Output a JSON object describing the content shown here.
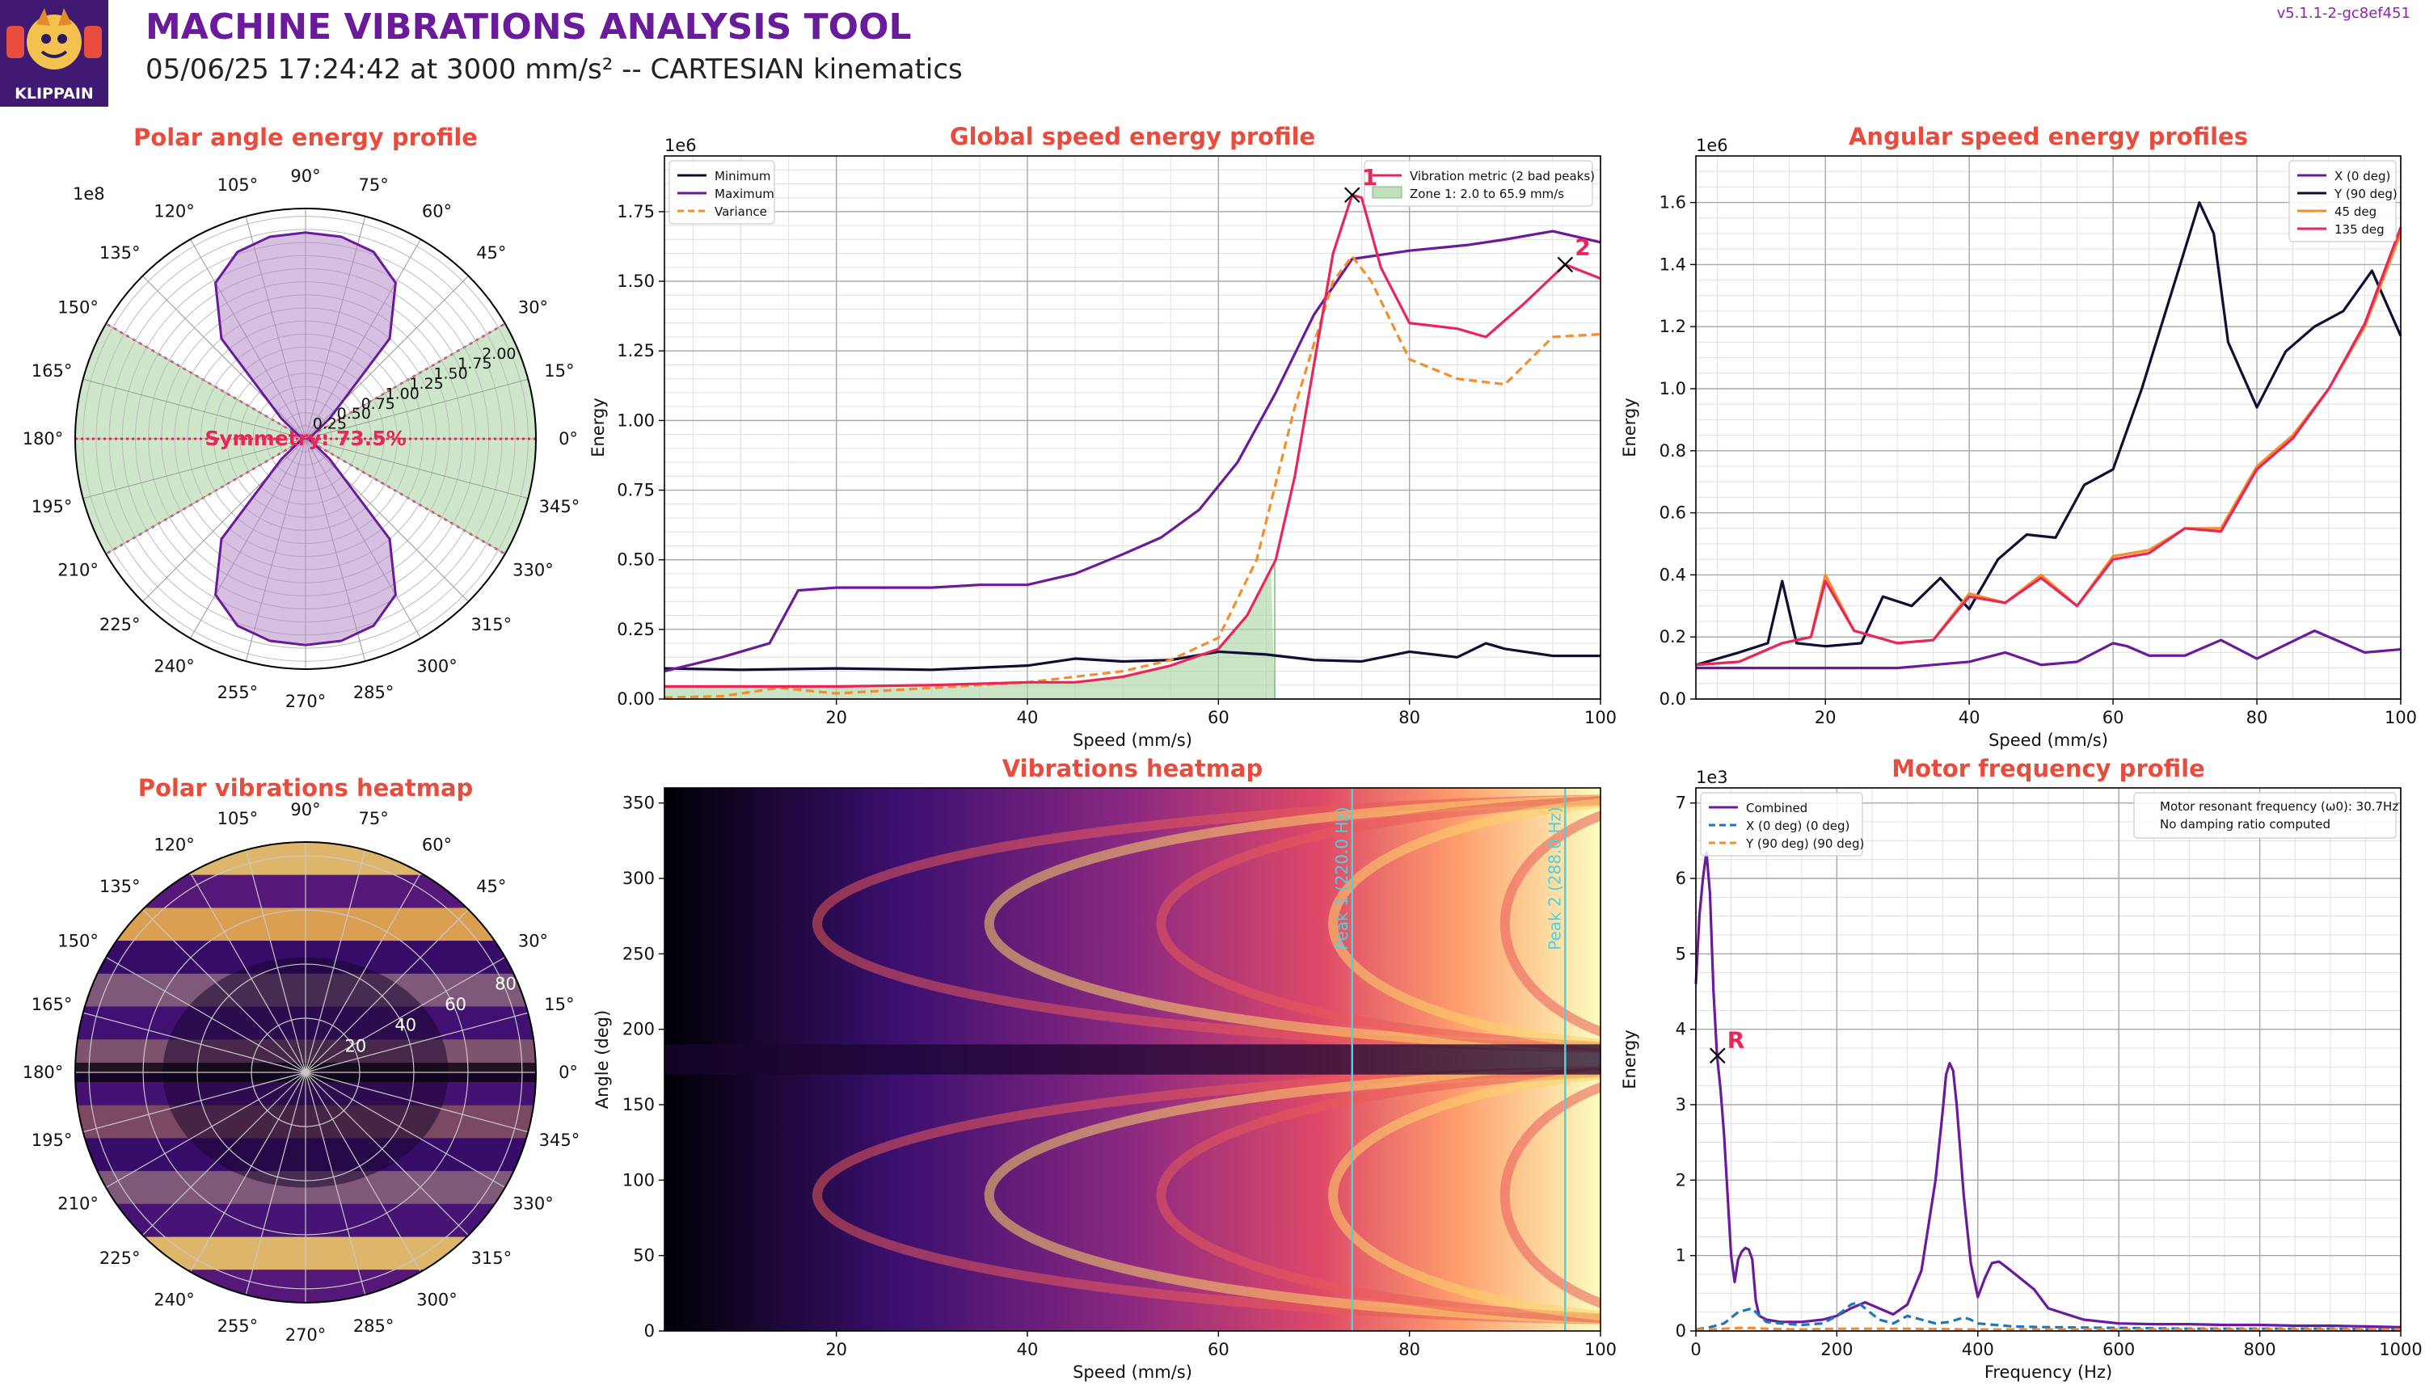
{
  "header": {
    "title": "MACHINE VIBRATIONS ANALYSIS TOOL",
    "subtitle": "05/06/25 17:24:42 at 3000 mm/s² -- CARTESIAN kinematics",
    "version": "v5.1.1-2-gc8ef451",
    "logo_text": "KLIPPAIN"
  },
  "colors": {
    "title": "#e74c3c",
    "purple": "#6a1b9a",
    "navy": "#120d35",
    "orange": "#f28e2b",
    "red": "#e8265a",
    "pink": "#e8265a",
    "green_fill": "#a6d4a0",
    "cyan": "#4dd0e1",
    "blue_dash": "#1f77b4"
  },
  "chart_data": [
    {
      "id": "polar-energy",
      "type": "polar-area",
      "title": "Polar angle energy profile",
      "scale_label": "1e8",
      "angle_ticks": [
        "0°",
        "15°",
        "30°",
        "45°",
        "60°",
        "75°",
        "90°",
        "105°",
        "120°",
        "135°",
        "150°",
        "165°",
        "180°",
        "195°",
        "210°",
        "225°",
        "240°",
        "255°",
        "270°",
        "285°",
        "300°",
        "315°",
        "330°",
        "345°"
      ],
      "radial_ticks": [
        "0.25",
        "0.50",
        "0.75",
        "1.00",
        "1.25",
        "1.50",
        "1.75",
        "2.00"
      ],
      "rmax": 2.2,
      "symmetry_label": "Symmetry: 73.5%",
      "energy_by_angle": {
        "angles": [
          0,
          10,
          20,
          30,
          40,
          50,
          60,
          70,
          80,
          90,
          100,
          110,
          120,
          130,
          140,
          150,
          160,
          170,
          180
        ],
        "values": [
          0.02,
          0.03,
          0.05,
          0.09,
          0.3,
          1.25,
          1.72,
          1.9,
          1.96,
          1.97,
          1.96,
          1.9,
          1.72,
          1.25,
          0.3,
          0.09,
          0.05,
          0.03,
          0.02
        ]
      },
      "green_zones_deg": [
        [
          -30,
          30
        ],
        [
          150,
          210
        ]
      ]
    },
    {
      "id": "global-speed",
      "type": "line",
      "title": "Global speed energy profile",
      "xlabel": "Speed (mm/s)",
      "ylabel": "Energy",
      "scale_label": "1e6",
      "xlim": [
        2,
        100
      ],
      "ylim": [
        0,
        1.95
      ],
      "xticks": [
        20,
        40,
        60,
        80,
        100
      ],
      "yticks": [
        0.0,
        0.25,
        0.5,
        0.75,
        1.0,
        1.25,
        1.5,
        1.75
      ],
      "ytick_labels": [
        "0.00",
        "0.25",
        "0.50",
        "0.75",
        "1.00",
        "1.25",
        "1.50",
        "1.75"
      ],
      "zone": {
        "from": 2.0,
        "to": 65.9,
        "label": "Zone 1: 2.0 to 65.9 mm/s"
      },
      "legend_left": [
        "Minimum",
        "Maximum",
        "Variance"
      ],
      "legend_right": [
        "Vibration metric (2 bad peaks)",
        "Zone 1: 2.0 to 65.9 mm/s"
      ],
      "peaks": [
        {
          "label": "1",
          "x": 74.0,
          "y": 1.81
        },
        {
          "label": "2",
          "x": 96.3,
          "y": 1.56
        }
      ],
      "series": [
        {
          "name": "Minimum",
          "x": [
            2,
            10,
            20,
            30,
            40,
            45,
            50,
            55,
            60,
            65,
            70,
            75,
            80,
            85,
            88,
            90,
            95,
            100
          ],
          "y": [
            0.11,
            0.105,
            0.11,
            0.105,
            0.12,
            0.145,
            0.135,
            0.14,
            0.17,
            0.16,
            0.14,
            0.135,
            0.17,
            0.15,
            0.2,
            0.18,
            0.155,
            0.155
          ]
        },
        {
          "name": "Maximum",
          "x": [
            2,
            8,
            13,
            16,
            20,
            30,
            35,
            40,
            45,
            50,
            54,
            58,
            62,
            66,
            70,
            74,
            80,
            86,
            90,
            95,
            100
          ],
          "y": [
            0.1,
            0.15,
            0.2,
            0.39,
            0.4,
            0.4,
            0.41,
            0.41,
            0.45,
            0.52,
            0.58,
            0.68,
            0.85,
            1.1,
            1.38,
            1.58,
            1.61,
            1.63,
            1.65,
            1.68,
            1.64
          ]
        },
        {
          "name": "Variance",
          "x": [
            2,
            8,
            14,
            20,
            30,
            40,
            50,
            55,
            60,
            64,
            68,
            72,
            74,
            76,
            80,
            85,
            90,
            95,
            100
          ],
          "y": [
            0.005,
            0.01,
            0.04,
            0.02,
            0.04,
            0.06,
            0.1,
            0.14,
            0.22,
            0.5,
            1.05,
            1.5,
            1.59,
            1.5,
            1.22,
            1.15,
            1.13,
            1.3,
            1.31
          ]
        },
        {
          "name": "Vibration metric (2 bad peaks)",
          "x": [
            2,
            10,
            20,
            30,
            40,
            45,
            50,
            55,
            60,
            63,
            66,
            68,
            70,
            72,
            74,
            75,
            77,
            80,
            85,
            88,
            92,
            96.3,
            100
          ],
          "y": [
            0.045,
            0.045,
            0.045,
            0.05,
            0.06,
            0.06,
            0.08,
            0.12,
            0.18,
            0.3,
            0.5,
            0.8,
            1.2,
            1.6,
            1.81,
            1.8,
            1.55,
            1.35,
            1.33,
            1.3,
            1.42,
            1.56,
            1.51
          ]
        }
      ]
    },
    {
      "id": "angular-speed",
      "type": "line",
      "title": "Angular speed energy profiles",
      "xlabel": "Speed (mm/s)",
      "ylabel": "Energy",
      "scale_label": "1e6",
      "xlim": [
        2,
        100
      ],
      "ylim": [
        0,
        1.75
      ],
      "xticks": [
        20,
        40,
        60,
        80,
        100
      ],
      "yticks": [
        0.0,
        0.2,
        0.4,
        0.6,
        0.8,
        1.0,
        1.2,
        1.4,
        1.6
      ],
      "ytick_labels": [
        "0.0",
        "0.2",
        "0.4",
        "0.6",
        "0.8",
        "1.0",
        "1.2",
        "1.4",
        "1.6"
      ],
      "legend": [
        "X (0 deg)",
        "Y (90 deg)",
        "45 deg",
        "135 deg"
      ],
      "series": [
        {
          "name": "X (0 deg)",
          "x": [
            2,
            10,
            20,
            30,
            40,
            45,
            50,
            55,
            60,
            62,
            65,
            70,
            75,
            80,
            88,
            95,
            100
          ],
          "y": [
            0.1,
            0.1,
            0.1,
            0.1,
            0.12,
            0.15,
            0.11,
            0.12,
            0.18,
            0.17,
            0.14,
            0.14,
            0.19,
            0.13,
            0.22,
            0.15,
            0.16
          ]
        },
        {
          "name": "Y (90 deg)",
          "x": [
            2,
            8,
            12,
            14,
            16,
            20,
            25,
            28,
            32,
            36,
            40,
            44,
            48,
            52,
            56,
            60,
            64,
            68,
            72,
            74,
            76,
            80,
            84,
            88,
            92,
            96,
            100
          ],
          "y": [
            0.11,
            0.15,
            0.18,
            0.38,
            0.18,
            0.17,
            0.18,
            0.33,
            0.3,
            0.39,
            0.29,
            0.45,
            0.53,
            0.52,
            0.69,
            0.74,
            1.0,
            1.3,
            1.6,
            1.5,
            1.15,
            0.94,
            1.12,
            1.2,
            1.25,
            1.38,
            1.17
          ]
        },
        {
          "name": "45 deg",
          "x": [
            2,
            8,
            14,
            18,
            20,
            24,
            30,
            35,
            40,
            45,
            50,
            55,
            60,
            65,
            70,
            75,
            80,
            85,
            90,
            95,
            100
          ],
          "y": [
            0.11,
            0.12,
            0.18,
            0.2,
            0.4,
            0.22,
            0.18,
            0.19,
            0.34,
            0.31,
            0.4,
            0.3,
            0.46,
            0.48,
            0.55,
            0.55,
            0.75,
            0.85,
            1.0,
            1.2,
            1.5
          ]
        },
        {
          "name": "135 deg",
          "x": [
            2,
            8,
            14,
            18,
            20,
            24,
            30,
            35,
            40,
            45,
            50,
            55,
            60,
            65,
            70,
            75,
            80,
            85,
            90,
            95,
            100
          ],
          "y": [
            0.11,
            0.12,
            0.18,
            0.2,
            0.38,
            0.22,
            0.18,
            0.19,
            0.33,
            0.31,
            0.39,
            0.3,
            0.45,
            0.47,
            0.55,
            0.54,
            0.74,
            0.84,
            1.0,
            1.21,
            1.52
          ]
        }
      ]
    },
    {
      "id": "polar-heatmap",
      "type": "heatmap",
      "title": "Polar vibrations heatmap",
      "angle_ticks": [
        "0°",
        "15°",
        "30°",
        "45°",
        "60°",
        "75°",
        "90°",
        "105°",
        "120°",
        "135°",
        "150°",
        "165°",
        "180°",
        "195°",
        "210°",
        "225°",
        "240°",
        "255°",
        "270°",
        "285°",
        "300°",
        "315°",
        "330°",
        "345°"
      ],
      "radial_ticks": [
        "20",
        "40",
        "60",
        "80"
      ]
    },
    {
      "id": "vib-heatmap",
      "type": "heatmap",
      "title": "Vibrations heatmap",
      "xlabel": "Speed (mm/s)",
      "ylabel": "Angle (deg)",
      "xlim": [
        2,
        100
      ],
      "ylim": [
        0,
        360
      ],
      "xticks": [
        20,
        40,
        60,
        80,
        100
      ],
      "yticks": [
        0,
        50,
        100,
        150,
        200,
        250,
        300,
        350
      ],
      "peak_lines": [
        {
          "x": 74.0,
          "label": "Peak 1 (220.0 Hz)"
        },
        {
          "x": 96.3,
          "label": "Peak 2 (288.0 Hz)"
        }
      ]
    },
    {
      "id": "motor-freq",
      "type": "line",
      "title": "Motor frequency profile",
      "xlabel": "Frequency (Hz)",
      "ylabel": "Energy",
      "scale_label": "1e3",
      "xlim": [
        0,
        1000
      ],
      "ylim": [
        0,
        7.2
      ],
      "xticks": [
        0,
        200,
        400,
        600,
        800,
        1000
      ],
      "yticks": [
        0,
        1,
        2,
        3,
        4,
        5,
        6,
        7
      ],
      "legend": [
        "Combined",
        "X (0 deg) (0 deg)",
        "Y (90 deg) (90 deg)"
      ],
      "info": [
        "Motor resonant frequency (ω0): 30.7Hz",
        "No damping ratio computed"
      ],
      "resonance": {
        "label": "R",
        "x": 30.7,
        "y": 3.65
      },
      "series": [
        {
          "name": "Combined",
          "x": [
            0,
            5,
            10,
            15,
            20,
            25,
            30,
            35,
            40,
            45,
            50,
            55,
            60,
            65,
            70,
            75,
            80,
            85,
            90,
            100,
            120,
            150,
            180,
            200,
            220,
            240,
            260,
            280,
            300,
            320,
            340,
            350,
            355,
            360,
            365,
            370,
            380,
            390,
            400,
            410,
            420,
            430,
            440,
            460,
            480,
            500,
            550,
            600,
            650,
            700,
            750,
            800,
            850,
            900,
            950,
            1000
          ],
          "y": [
            4.6,
            5.5,
            6.0,
            6.35,
            5.8,
            4.5,
            3.65,
            3.2,
            2.6,
            1.8,
            1.0,
            0.65,
            0.95,
            1.05,
            1.1,
            1.08,
            0.95,
            0.4,
            0.2,
            0.15,
            0.12,
            0.12,
            0.15,
            0.2,
            0.3,
            0.38,
            0.3,
            0.22,
            0.35,
            0.8,
            2.0,
            2.9,
            3.4,
            3.55,
            3.45,
            3.0,
            1.8,
            0.9,
            0.45,
            0.7,
            0.9,
            0.92,
            0.85,
            0.7,
            0.55,
            0.3,
            0.15,
            0.1,
            0.09,
            0.09,
            0.08,
            0.08,
            0.07,
            0.07,
            0.06,
            0.05
          ]
        },
        {
          "name": "X (0 deg) (0 deg)",
          "x": [
            0,
            20,
            40,
            60,
            80,
            90,
            100,
            120,
            150,
            180,
            200,
            220,
            230,
            240,
            260,
            280,
            300,
            320,
            340,
            360,
            380,
            390,
            400,
            450,
            500,
            600,
            700,
            800,
            900,
            1000
          ],
          "y": [
            0.02,
            0.05,
            0.1,
            0.25,
            0.3,
            0.2,
            0.12,
            0.1,
            0.08,
            0.1,
            0.2,
            0.35,
            0.38,
            0.3,
            0.15,
            0.1,
            0.2,
            0.15,
            0.1,
            0.12,
            0.18,
            0.15,
            0.1,
            0.06,
            0.05,
            0.04,
            0.03,
            0.03,
            0.03,
            0.02
          ]
        },
        {
          "name": "Y (90 deg) (90 deg)",
          "x": [
            0,
            20,
            40,
            60,
            80,
            100,
            150,
            200,
            250,
            300,
            400,
            500,
            600,
            700,
            800,
            900,
            1000
          ],
          "y": [
            0.02,
            0.02,
            0.03,
            0.04,
            0.04,
            0.03,
            0.02,
            0.03,
            0.03,
            0.03,
            0.02,
            0.02,
            0.02,
            0.02,
            0.02,
            0.02,
            0.02
          ]
        }
      ]
    }
  ]
}
